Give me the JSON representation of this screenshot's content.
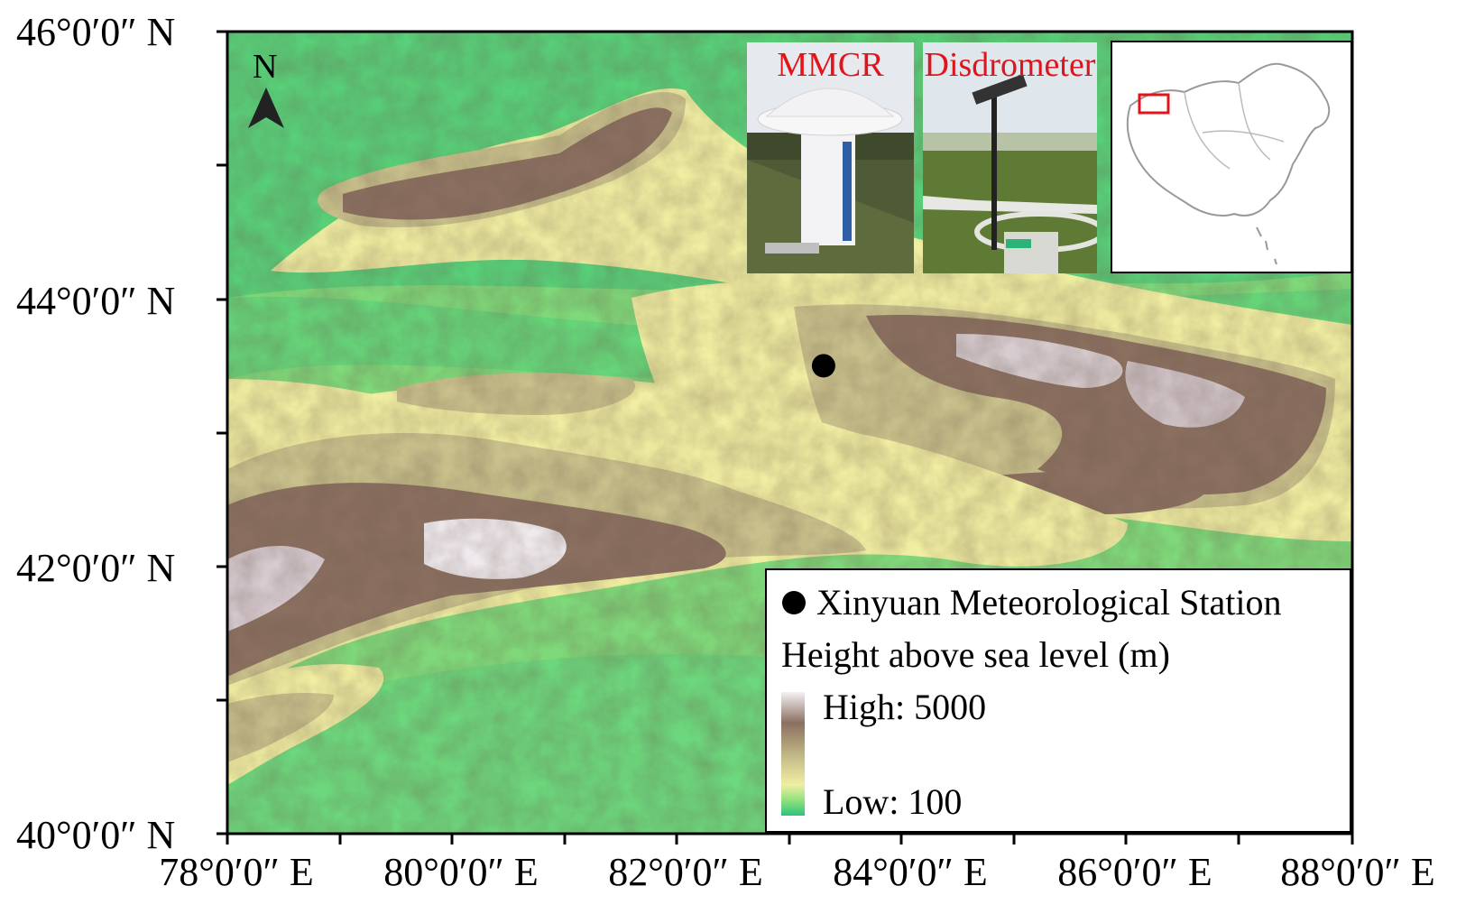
{
  "map": {
    "y_axis_labels": [
      "46°0′0″ N",
      "44°0′0″ N",
      "42°0′0″ N",
      "40°0′0″ N"
    ],
    "x_axis_labels": [
      "78°0′0″ E",
      "80°0′0″ E",
      "82°0′0″ E",
      "84°0′0″ E",
      "86°0′0″ E",
      "88°0′0″ E"
    ],
    "north_label": "N",
    "station": {
      "name": "Xinyuan Meteorological Station",
      "lon": 83.3,
      "lat": 43.5
    }
  },
  "photos": {
    "mmcr_label": "MMCR",
    "disdrometer_label": "Disdrometer"
  },
  "legend": {
    "station_label": "Xinyuan Meteorological Station",
    "title": "Height above sea level (m)",
    "high": "High: 5000",
    "low": "Low: 100"
  },
  "colors": {
    "low": "#2cc27d",
    "mid_green": "#8de07c",
    "yellow": "#f0eea2",
    "tan": "#c9c18c",
    "brown": "#8b7060",
    "high": "#f4f1f4",
    "label_red": "#e1141c"
  }
}
